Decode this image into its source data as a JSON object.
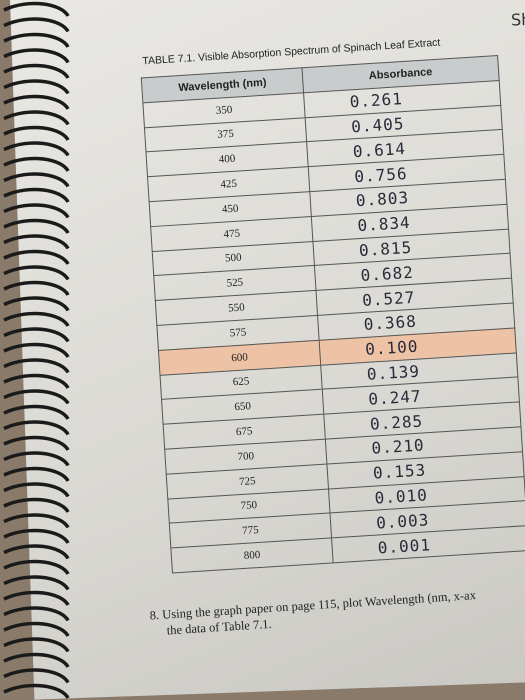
{
  "corner": "Sh",
  "caption": "TABLE 7.1. Visible Absorption Spectrum of Spinach Leaf Extract",
  "table": {
    "headers": [
      "Wavelength (nm)",
      "Absorbance"
    ],
    "rows": [
      [
        "350",
        "0.261"
      ],
      [
        "375",
        "0.405"
      ],
      [
        "400",
        "0.614"
      ],
      [
        "425",
        "0.756"
      ],
      [
        "450",
        "0.803"
      ],
      [
        "475",
        "0.834"
      ],
      [
        "500",
        "0.815"
      ],
      [
        "525",
        "0.682"
      ],
      [
        "550",
        "0.527"
      ],
      [
        "575",
        "0.368"
      ],
      [
        "600",
        "0.100"
      ],
      [
        "625",
        "0.139"
      ],
      [
        "650",
        "0.247"
      ],
      [
        "675",
        "0.285"
      ],
      [
        "700",
        "0.210"
      ],
      [
        "725",
        "0.153"
      ],
      [
        "750",
        "0.010"
      ],
      [
        "775",
        "0.003"
      ],
      [
        "800",
        "0.001"
      ]
    ],
    "highlight_row": 10
  },
  "note": {
    "number": "8.",
    "line1": "Using the graph paper on page 115, plot Wavelength (nm, x-ax",
    "line2": "the data of Table 7.1."
  }
}
